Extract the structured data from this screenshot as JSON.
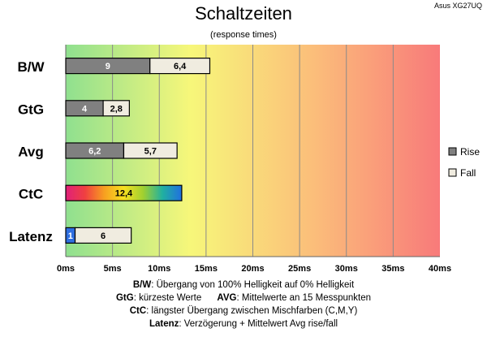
{
  "chart_data": {
    "type": "bar",
    "title": "Schaltzeiten",
    "subtitle": "(response times)",
    "model": "Asus XG27UQ",
    "categories": [
      "B/W",
      "GtG",
      "Avg",
      "CtC",
      "Latenz"
    ],
    "series": [
      {
        "name": "Rise",
        "color": "#808080",
        "values": [
          9,
          4,
          6.2,
          null,
          1
        ],
        "labels": [
          "9",
          "4",
          "6,2",
          null,
          "1"
        ]
      },
      {
        "name": "Fall",
        "color": "#f0ece0",
        "values": [
          6.4,
          2.8,
          5.7,
          null,
          6
        ],
        "labels": [
          "6,4",
          "2,8",
          "5,7",
          null,
          "6"
        ]
      },
      {
        "name": "CtC",
        "values": [
          null,
          null,
          null,
          12.4,
          null
        ],
        "labels": [
          null,
          null,
          null,
          "12,4",
          null
        ]
      }
    ],
    "latenz_rise_color": "#2f6fe0",
    "x_ticks": [
      0,
      5,
      10,
      15,
      20,
      25,
      30,
      35,
      40
    ],
    "x_tick_labels": [
      "0ms",
      "5ms",
      "10ms",
      "15ms",
      "20ms",
      "25ms",
      "30ms",
      "35ms",
      "40ms"
    ],
    "xlim": [
      0,
      40
    ],
    "legend": {
      "position": "right",
      "entries": [
        "Rise",
        "Fall"
      ]
    },
    "background_gradient": [
      "#8fe08f",
      "#f7f77a",
      "#fbbd7a",
      "#f87a7a"
    ]
  },
  "notes": [
    {
      "label": "B/W",
      "text": ":  Übergang von 100% Helligkeit auf 0% Helligkeit"
    },
    {
      "label": "GtG",
      "text": ": kürzeste  Werte",
      "label2": "AVG",
      "text2": ": Mittelwerte  an 15 Messpunkten"
    },
    {
      "label": "CtC",
      "text": ": längster Übergang  zwischen Mischfarben  (C,M,Y)"
    },
    {
      "label": "Latenz",
      "text": ": Verzögerung  + Mittelwert  Avg rise/fall"
    }
  ]
}
